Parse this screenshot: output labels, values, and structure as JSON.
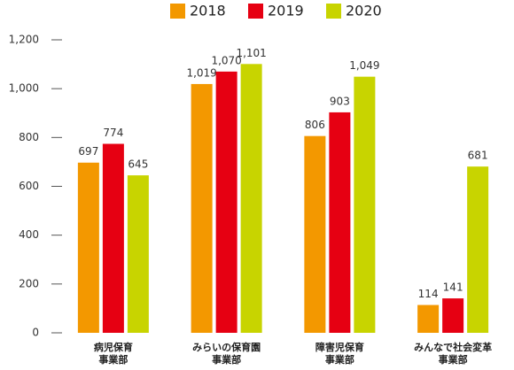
{
  "chart_data": {
    "type": "bar",
    "categories": [
      "病児保育\n事業部",
      "みらいの保育園\n事業部",
      "障害児保育\n事業部",
      "みんなで社会変革\n事業部"
    ],
    "series": [
      {
        "name": "2018",
        "color": "#f39800",
        "values": [
          697,
          1019,
          806,
          114
        ],
        "value_labels": [
          "697",
          "1,019",
          "806",
          "114"
        ]
      },
      {
        "name": "2019",
        "color": "#e60012",
        "values": [
          774,
          1070,
          903,
          141
        ],
        "value_labels": [
          "774",
          "1,070",
          "903",
          "141"
        ]
      },
      {
        "name": "2020",
        "color": "#c8d400",
        "values": [
          645,
          1101,
          1049,
          681
        ],
        "value_labels": [
          "645",
          "1,101",
          "1,049",
          "681"
        ]
      }
    ],
    "ylim": [
      0,
      1200
    ],
    "yticks": [
      0,
      200,
      400,
      600,
      800,
      {
        "value": 1000,
        "label": "1,000"
      },
      {
        "value": 1200,
        "label": "1,200"
      }
    ]
  }
}
